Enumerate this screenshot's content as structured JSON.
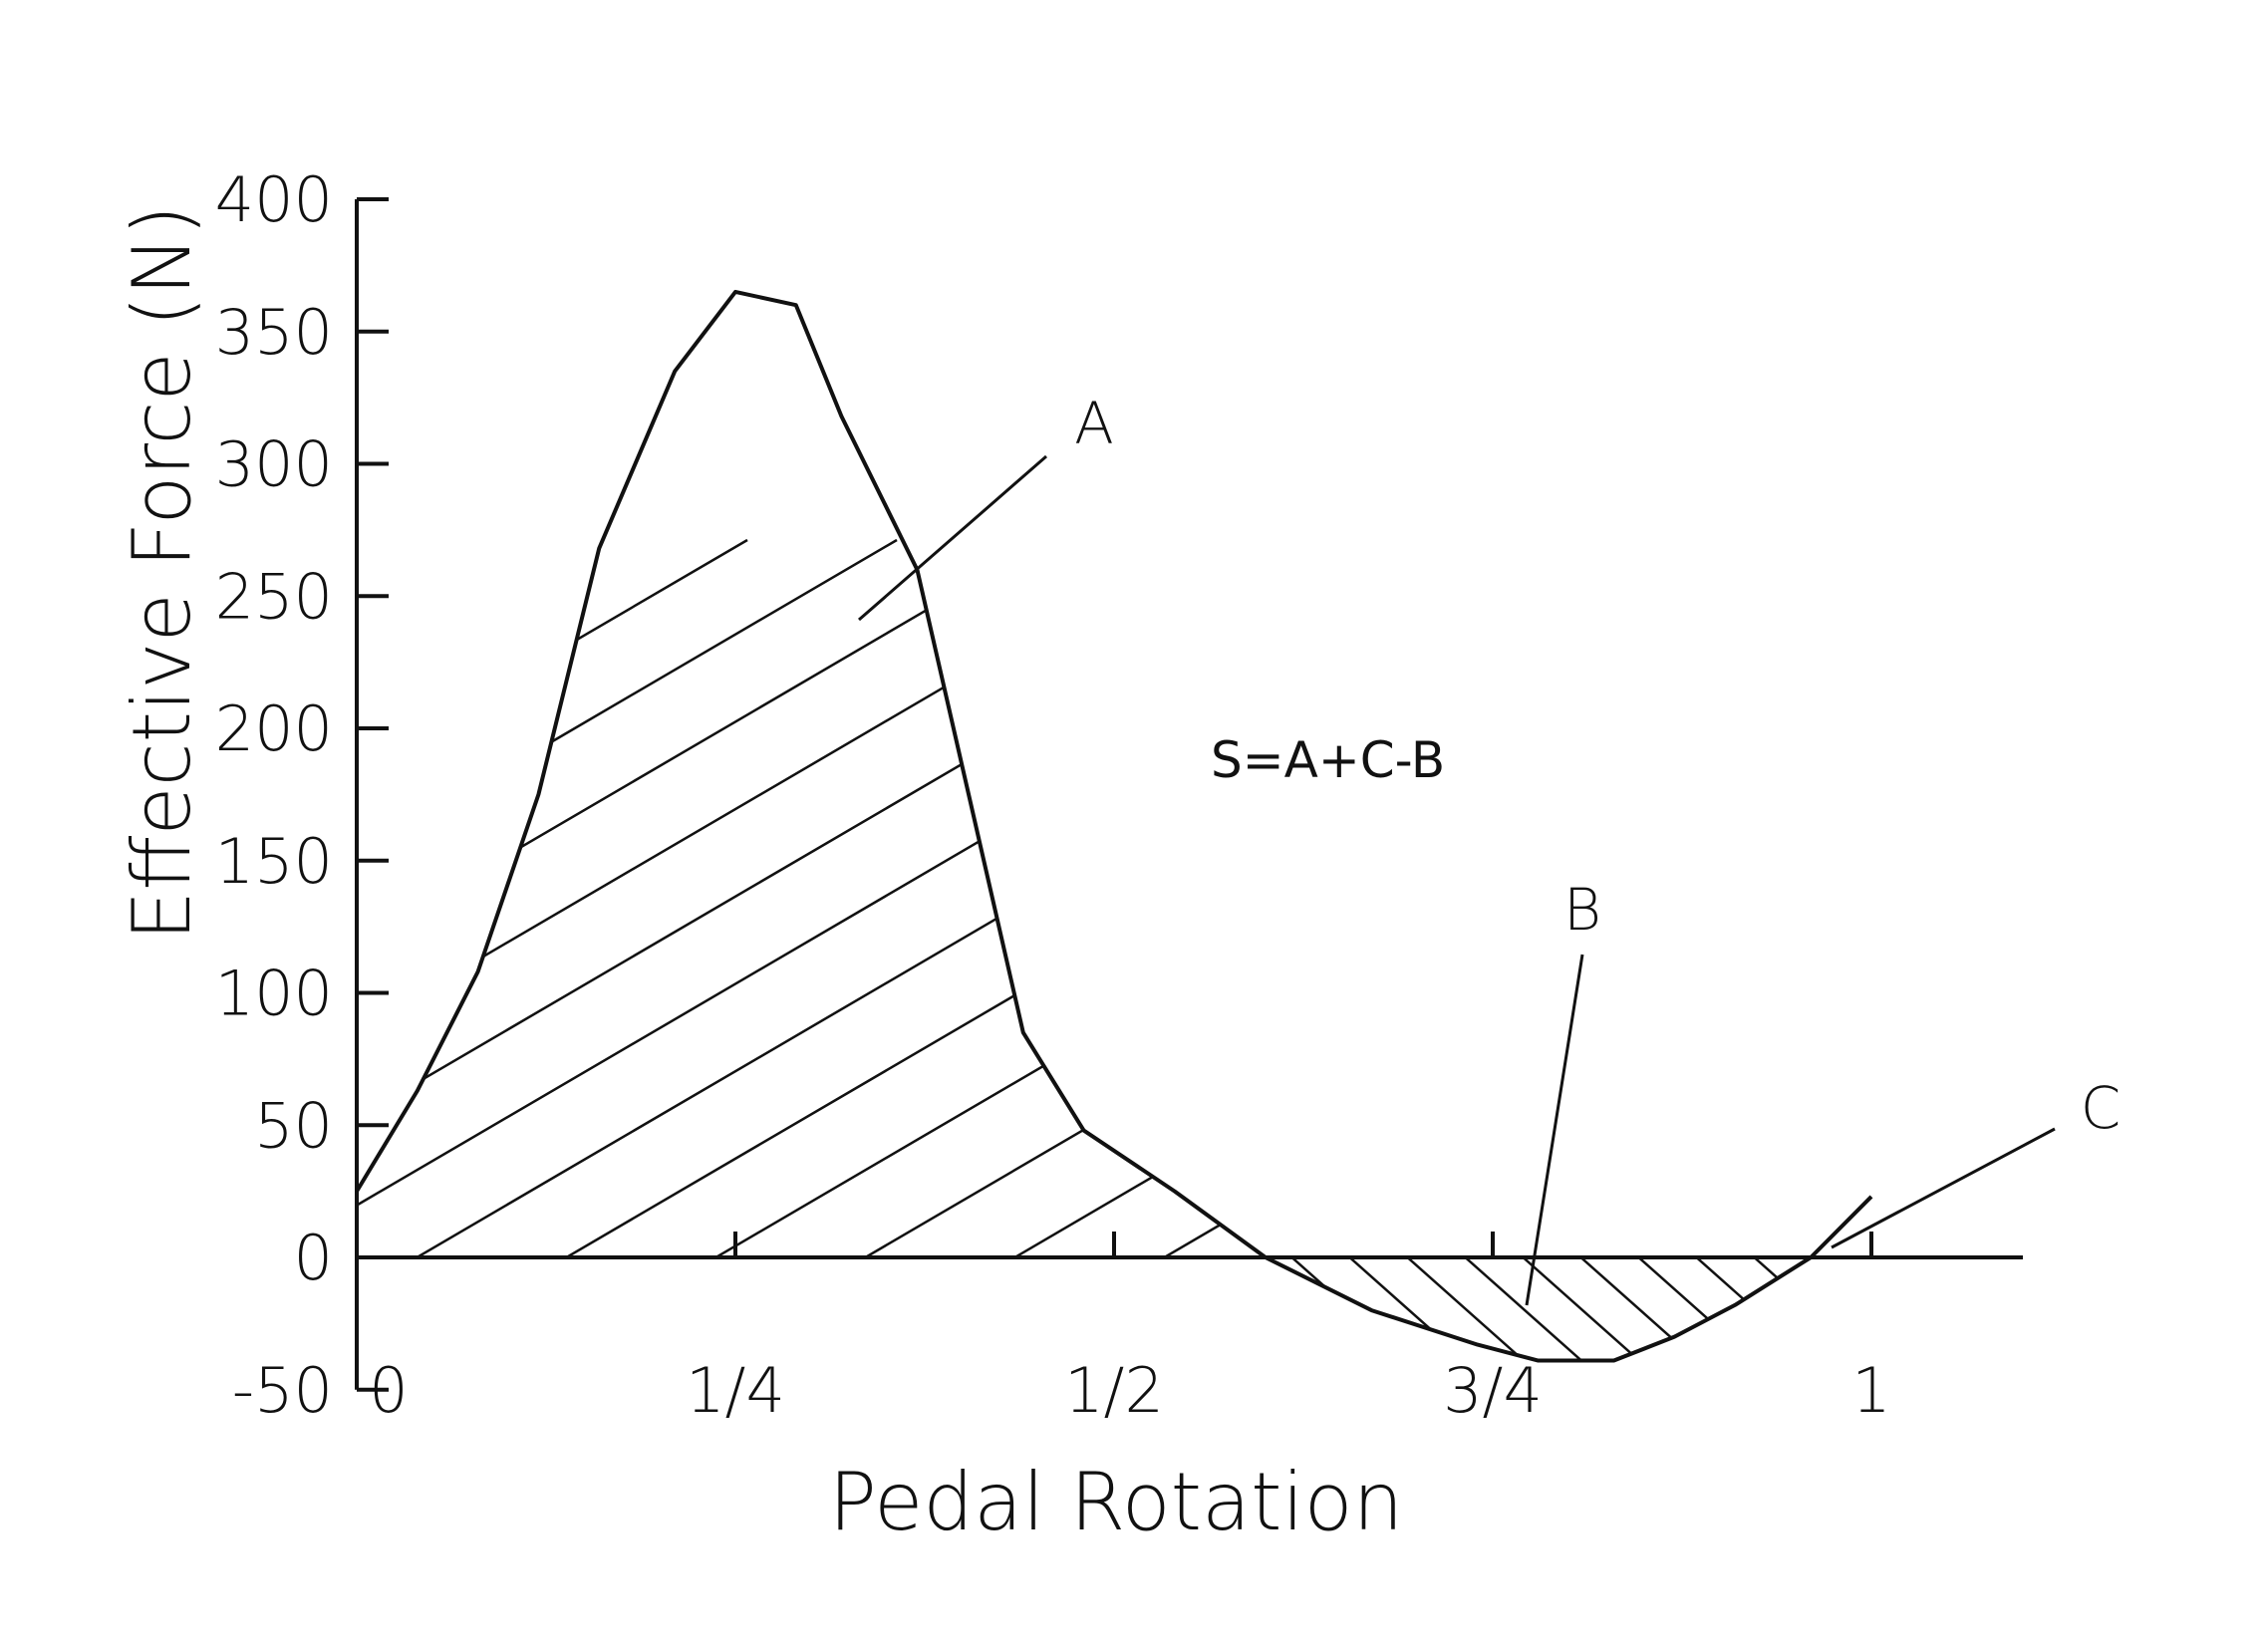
{
  "colors": {
    "ink": "#111111",
    "background": "#ffffff"
  },
  "chart_data": {
    "type": "line",
    "xlabel": "Pedal Rotation",
    "ylabel": "Effective Force (N)",
    "xlim": [
      0,
      1.1
    ],
    "ylim": [
      -50,
      400
    ],
    "x_ticks": [
      {
        "value": 0,
        "label": "0"
      },
      {
        "value": 0.25,
        "label": "1/4"
      },
      {
        "value": 0.5,
        "label": "1/2"
      },
      {
        "value": 0.75,
        "label": "3/4"
      },
      {
        "value": 1,
        "label": "1"
      }
    ],
    "y_ticks": [
      400,
      350,
      300,
      250,
      200,
      150,
      100,
      50,
      0,
      -50
    ],
    "series": [
      {
        "x": [
          0,
          0.04,
          0.08,
          0.12,
          0.16,
          0.21,
          0.25,
          0.29,
          0.32,
          0.37,
          0.44,
          0.48,
          0.54,
          0.6,
          0.67,
          0.74,
          0.78,
          0.83,
          0.87,
          0.91,
          0.96,
          1.0
        ],
        "y": [
          25,
          63,
          108,
          175,
          268,
          335,
          365,
          360,
          318,
          260,
          85,
          48,
          25,
          0,
          -20,
          -33,
          -39,
          -39,
          -30,
          -18,
          0,
          23
        ]
      }
    ],
    "formula": "S=A+C-B",
    "area_labels": [
      "A",
      "B",
      "C"
    ],
    "grid": false,
    "legend": "none"
  }
}
